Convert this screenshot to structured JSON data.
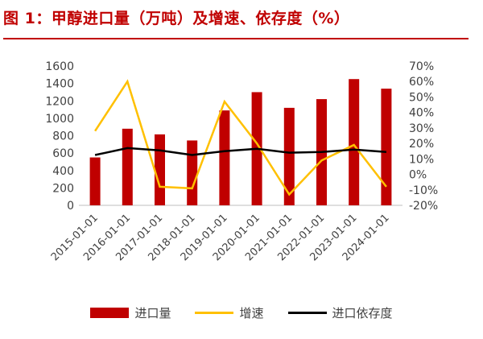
{
  "title": "图 1：甲醇进口量（万吨）及增速、依存度（%）",
  "colors": {
    "accent": "#c00000",
    "bar": "#c00000",
    "growth": "#ffc000",
    "dependence": "#000000"
  },
  "chart_data": {
    "type": "bar",
    "categories": [
      "2015-01-01",
      "2016-01-01",
      "2017-01-01",
      "2018-01-01",
      "2019-01-01",
      "2020-01-01",
      "2021-01-01",
      "2022-01-01",
      "2023-01-01",
      "2024-01-01"
    ],
    "series": [
      {
        "name": "进口量",
        "type": "bar",
        "axis": "left",
        "values": [
          550,
          880,
          815,
          745,
          1090,
          1300,
          1120,
          1220,
          1450,
          1340
        ]
      },
      {
        "name": "增速",
        "type": "line",
        "axis": "right",
        "values": [
          28,
          60,
          -8,
          -9,
          47,
          20,
          -13,
          9,
          19,
          -8
        ]
      },
      {
        "name": "进口依存度",
        "type": "line",
        "axis": "right",
        "values": [
          12.5,
          17,
          15.5,
          12.5,
          15,
          16.5,
          14,
          14.5,
          16,
          14.5
        ]
      }
    ],
    "yleft": {
      "min": 0,
      "max": 1600,
      "step": 200
    },
    "yright": {
      "min": -20,
      "max": 70,
      "step": 10,
      "unit": "%"
    },
    "legend_position": "bottom",
    "grid": false
  }
}
